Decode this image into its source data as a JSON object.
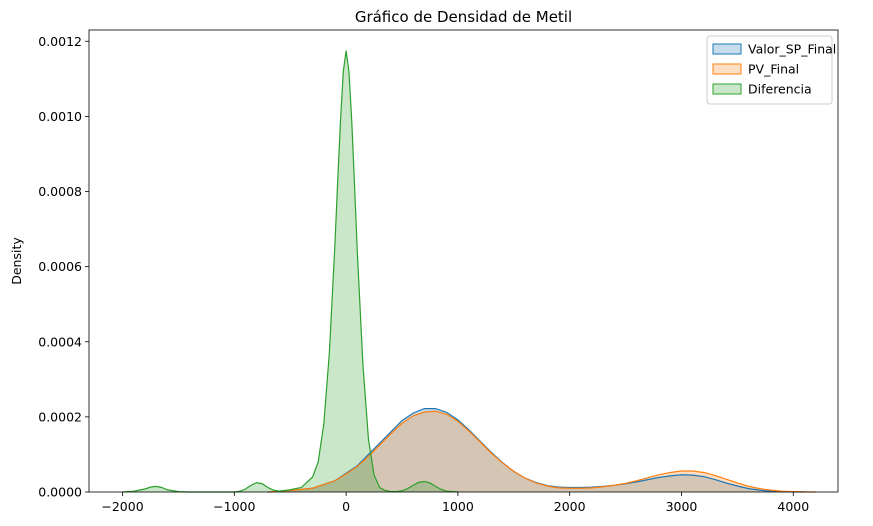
{
  "chart_data": {
    "type": "area",
    "title": "Gráfico de Densidad de Metil",
    "xlabel": "",
    "ylabel": "Density",
    "xlim": [
      -2300,
      4400
    ],
    "ylim": [
      0,
      0.00123
    ],
    "grid": false,
    "legend_position": "top-right",
    "x_ticks": [
      -2000,
      -1000,
      0,
      1000,
      2000,
      3000,
      4000
    ],
    "x_tick_labels": [
      "−2000",
      "−1000",
      "0",
      "1000",
      "2000",
      "3000",
      "4000"
    ],
    "y_ticks": [
      0,
      0.0002,
      0.0004,
      0.0006,
      0.0008,
      0.001,
      0.0012
    ],
    "y_tick_labels": [
      "0.0000",
      "0.0002",
      "0.0004",
      "0.0006",
      "0.0008",
      "0.0010",
      "0.0012"
    ],
    "series": [
      {
        "name": "Valor_SP_Final",
        "color": "#1f77b4",
        "x": [
          -700,
          -500,
          -300,
          -100,
          0,
          100,
          200,
          300,
          400,
          500,
          600,
          700,
          800,
          900,
          1000,
          1100,
          1200,
          1300,
          1400,
          1500,
          1600,
          1700,
          1800,
          1900,
          2000,
          2100,
          2200,
          2300,
          2400,
          2500,
          2600,
          2700,
          2800,
          2900,
          3000,
          3100,
          3200,
          3300,
          3400,
          3500,
          3600,
          3700,
          3800,
          3900,
          4000,
          4100
        ],
        "y": [
          0,
          4e-06,
          1e-05,
          3e-05,
          5e-05,
          7e-05,
          0.0001,
          0.00013,
          0.00016,
          0.00019,
          0.00021,
          0.000222,
          0.000222,
          0.000212,
          0.000192,
          0.000165,
          0.000135,
          0.000105,
          7.8e-05,
          5.5e-05,
          3.7e-05,
          2.5e-05,
          1.7e-05,
          1.3e-05,
          1.2e-05,
          1.2e-05,
          1.3e-05,
          1.5e-05,
          1.8e-05,
          2.2e-05,
          2.7e-05,
          3.3e-05,
          3.9e-05,
          4.3e-05,
          4.6e-05,
          4.5e-05,
          4.1e-05,
          3.3e-05,
          2.4e-05,
          1.6e-05,
          9e-06,
          5e-06,
          2e-06,
          1e-06,
          5e-07,
          0
        ]
      },
      {
        "name": "PV_Final",
        "color": "#ff7f0e",
        "x": [
          -700,
          -500,
          -300,
          -100,
          0,
          100,
          200,
          300,
          400,
          500,
          600,
          700,
          800,
          900,
          1000,
          1100,
          1200,
          1300,
          1400,
          1500,
          1600,
          1700,
          1800,
          1900,
          2000,
          2100,
          2200,
          2300,
          2400,
          2500,
          2600,
          2700,
          2800,
          2900,
          3000,
          3100,
          3200,
          3300,
          3400,
          3500,
          3600,
          3700,
          3800,
          3900,
          4000,
          4100,
          4200
        ],
        "y": [
          0,
          4e-06,
          1e-05,
          3e-05,
          4.8e-05,
          6.8e-05,
          9.5e-05,
          0.000125,
          0.000155,
          0.000183,
          0.000203,
          0.000213,
          0.000215,
          0.000207,
          0.000188,
          0.000162,
          0.000133,
          0.000103,
          7.7e-05,
          5.5e-05,
          3.7e-05,
          2.4e-05,
          1.6e-05,
          1.1e-05,
          1e-05,
          1e-05,
          1.1e-05,
          1.4e-05,
          1.8e-05,
          2.3e-05,
          3e-05,
          3.8e-05,
          4.6e-05,
          5.2e-05,
          5.6e-05,
          5.6e-05,
          5.2e-05,
          4.4e-05,
          3.4e-05,
          2.4e-05,
          1.5e-05,
          9e-06,
          5e-06,
          2e-06,
          1e-06,
          3e-07,
          0
        ]
      },
      {
        "name": "Diferencia",
        "color": "#2ca02c",
        "x": [
          -2000,
          -1900,
          -1800,
          -1750,
          -1700,
          -1650,
          -1600,
          -1500,
          -1400,
          -1200,
          -1000,
          -950,
          -900,
          -850,
          -800,
          -750,
          -700,
          -650,
          -600,
          -500,
          -400,
          -300,
          -250,
          -200,
          -150,
          -100,
          -75,
          -50,
          -25,
          0,
          25,
          50,
          75,
          100,
          150,
          200,
          250,
          300,
          350,
          400,
          450,
          500,
          550,
          600,
          650,
          700,
          750,
          800,
          850,
          900,
          1000
        ],
        "y": [
          0,
          2e-06,
          8e-06,
          1.3e-05,
          1.5e-05,
          1.2e-05,
          6e-06,
          1e-06,
          0,
          0,
          0,
          2e-06,
          8e-06,
          1.8e-05,
          2.5e-05,
          2.2e-05,
          1.2e-05,
          5e-06,
          2e-06,
          6e-06,
          1.2e-05,
          4e-05,
          8e-05,
          0.00018,
          0.00037,
          0.00066,
          0.00083,
          0.00099,
          0.00112,
          0.001175,
          0.00112,
          0.00099,
          0.00082,
          0.00064,
          0.00034,
          0.00014,
          4.5e-05,
          1.2e-05,
          4e-06,
          1e-06,
          1e-06,
          3e-06,
          9e-06,
          1.8e-05,
          2.6e-05,
          2.8e-05,
          2.4e-05,
          1.5e-05,
          7e-06,
          2e-06,
          0
        ]
      }
    ]
  }
}
